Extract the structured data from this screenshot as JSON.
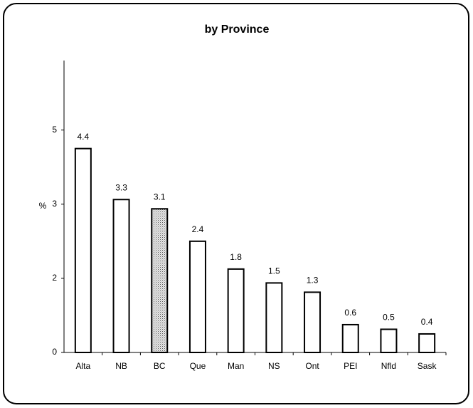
{
  "chart_data": {
    "type": "bar",
    "title": "by Province",
    "y_label": "%",
    "categories": [
      "Alta",
      "NB",
      "BC",
      "Que",
      "Man",
      "NS",
      "Ont",
      "PEI",
      "Nfld",
      "Sask"
    ],
    "values": [
      4.4,
      3.3,
      3.1,
      2.4,
      1.8,
      1.5,
      1.3,
      0.6,
      0.5,
      0.4
    ],
    "colors": [
      "white",
      "white",
      "dotted",
      "white",
      "white",
      "white",
      "white",
      "white",
      "white",
      "white"
    ],
    "ylim": [
      0,
      6.3
    ],
    "yticks": [
      0,
      {
        "value": 1.6,
        "label": "2"
      },
      {
        "value": 3.2,
        "label": "3"
      },
      {
        "value": 4.8,
        "label": "5"
      }
    ],
    "grid": false
  }
}
